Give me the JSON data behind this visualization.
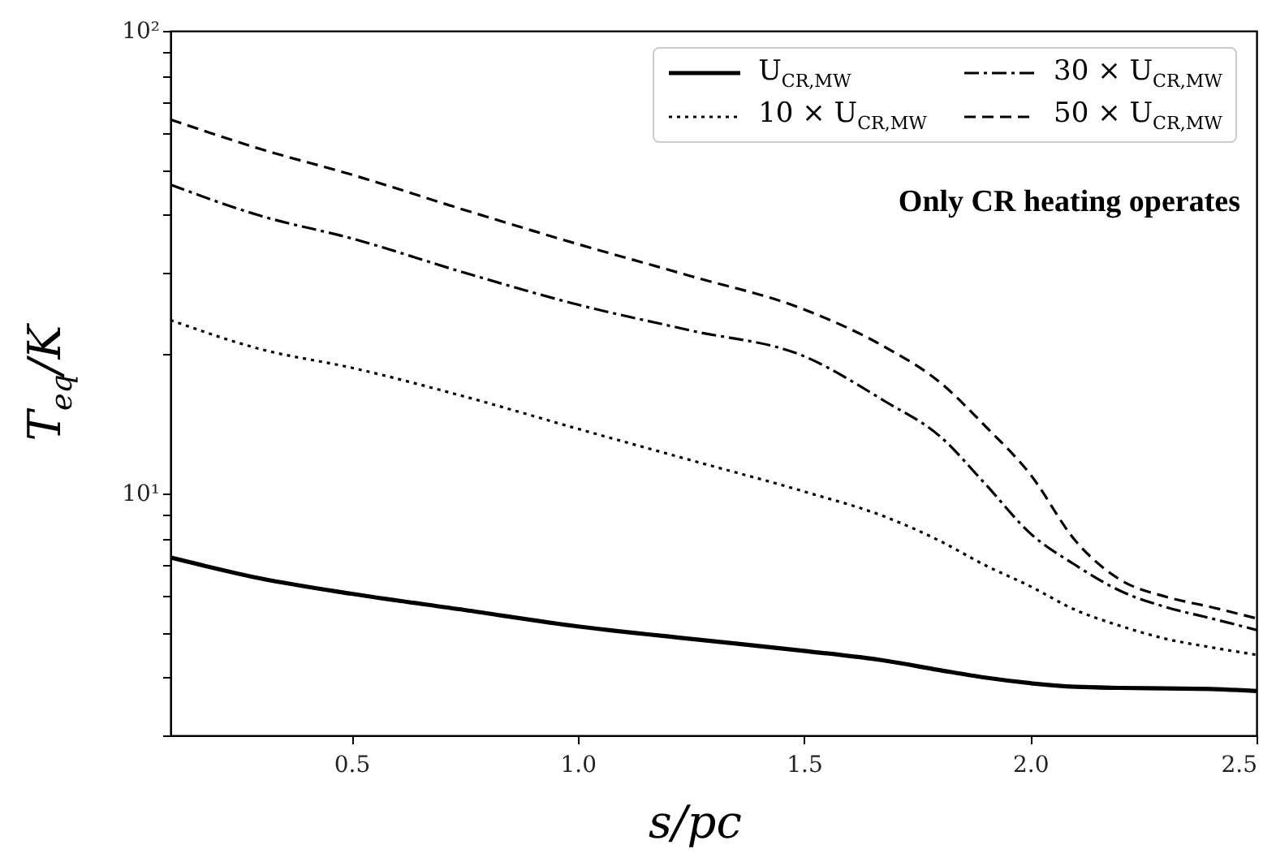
{
  "chart_data": {
    "type": "line",
    "xlabel": "s/pc",
    "ylabel": "T$_{eq}$/K",
    "log": "y",
    "grid": false,
    "legend": "top right",
    "marker": "none",
    "annotations": [
      "Only CR heating operates"
    ],
    "xlim": [
      0.1,
      2.5
    ],
    "xticks": [
      0.5,
      {
        "value": 1,
        "label": "1.0"
      },
      1.5,
      {
        "value": 2,
        "label": "2.0"
      },
      2.5
    ],
    "ylim": [
      3,
      100
    ],
    "yticks": [
      {
        "value": 3,
        "label": null
      },
      {
        "value": 4,
        "label": null
      },
      {
        "value": 5,
        "label": null
      },
      {
        "value": 6,
        "label": null
      },
      {
        "value": 7,
        "label": null
      },
      {
        "value": 8,
        "label": null
      },
      {
        "value": 9,
        "label": null
      },
      {
        "value": 10,
        "label": "10¹"
      },
      {
        "value": 20,
        "label": null
      },
      {
        "value": 30,
        "label": null
      },
      {
        "value": 40,
        "label": null
      },
      {
        "value": 50,
        "label": null
      },
      {
        "value": 60,
        "label": null
      },
      {
        "value": 70,
        "label": null
      },
      {
        "value": 80,
        "label": null
      },
      {
        "value": 90,
        "label": null
      },
      {
        "value": 100,
        "label": "10²"
      }
    ],
    "x": [
      0.1,
      0.3,
      0.5,
      0.75,
      1.0,
      1.25,
      1.5,
      1.68,
      1.8,
      1.9,
      2.0,
      2.1,
      2.2,
      2.3,
      2.4,
      2.5
    ],
    "series": [
      {
        "name": "U$_{CR,MW}$",
        "color": "#000000",
        "line_style": "solid",
        "values": [
          7.27,
          6.55,
          6.07,
          5.6,
          5.16,
          4.85,
          4.57,
          4.35,
          4.15,
          4.0,
          3.89,
          3.82,
          3.8,
          3.79,
          3.78,
          3.74
        ]
      },
      {
        "name": "10 × U$_{CR,MW}$",
        "color": "#000000",
        "line_style": "dotted",
        "values": [
          23.7,
          20.5,
          18.7,
          16.2,
          13.8,
          11.8,
          10.1,
          8.9,
          7.9,
          7.0,
          6.3,
          5.6,
          5.17,
          4.85,
          4.65,
          4.48
        ]
      },
      {
        "name": "30 × U$_{CR,MW}$",
        "color": "#000000",
        "line_style": "dashdot",
        "values": [
          46.5,
          39.8,
          35.6,
          30.0,
          25.6,
          22.5,
          19.8,
          15.8,
          13.3,
          10.5,
          8.2,
          7.0,
          6.15,
          5.68,
          5.37,
          5.07
        ]
      },
      {
        "name": "50 × U$_{CR,MW}$",
        "color": "#000000",
        "line_style": "dashed",
        "values": [
          64.3,
          55.5,
          48.9,
          41.0,
          34.6,
          29.5,
          25.0,
          20.7,
          17.4,
          14.0,
          11.0,
          7.9,
          6.5,
          5.98,
          5.68,
          5.37
        ]
      }
    ]
  }
}
